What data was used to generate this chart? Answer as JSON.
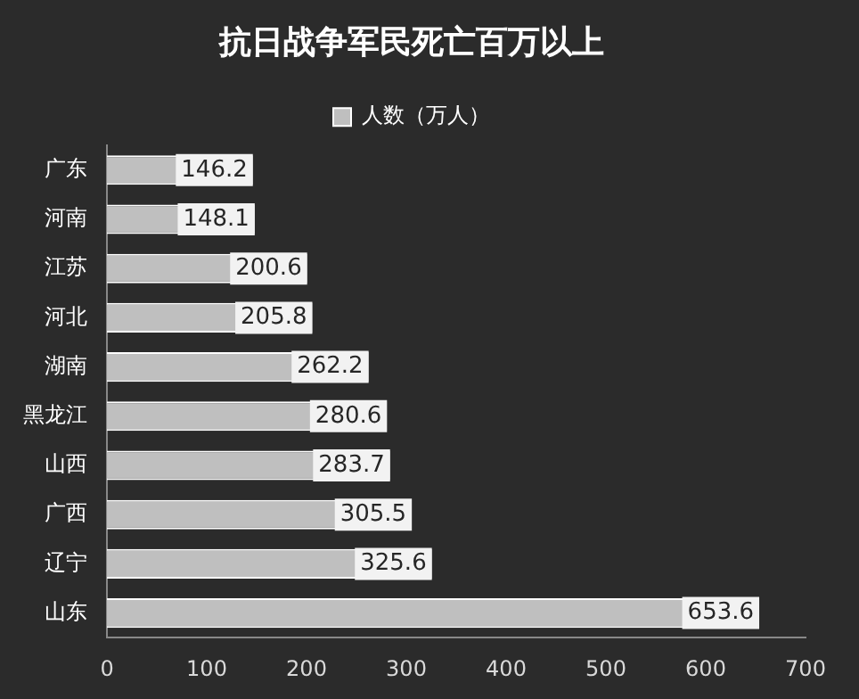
{
  "chart_data": {
    "type": "bar",
    "orientation": "horizontal",
    "title": "抗日战争军民死亡百万以上",
    "categories": [
      "广东",
      "河南",
      "江苏",
      "河北",
      "湖南",
      "黑龙江",
      "山西",
      "广西",
      "辽宁",
      "山东"
    ],
    "series": [
      {
        "name": "人数（万人）",
        "color": "#bfbfbf",
        "values": [
          146.2,
          148.1,
          200.6,
          205.8,
          262.2,
          280.6,
          283.7,
          305.5,
          325.6,
          653.6
        ]
      }
    ],
    "xlim": [
      0,
      700
    ],
    "xticks": [
      0,
      100,
      200,
      300,
      400,
      500,
      600,
      700
    ],
    "data_labels": true,
    "legend": "top",
    "grid": false
  }
}
